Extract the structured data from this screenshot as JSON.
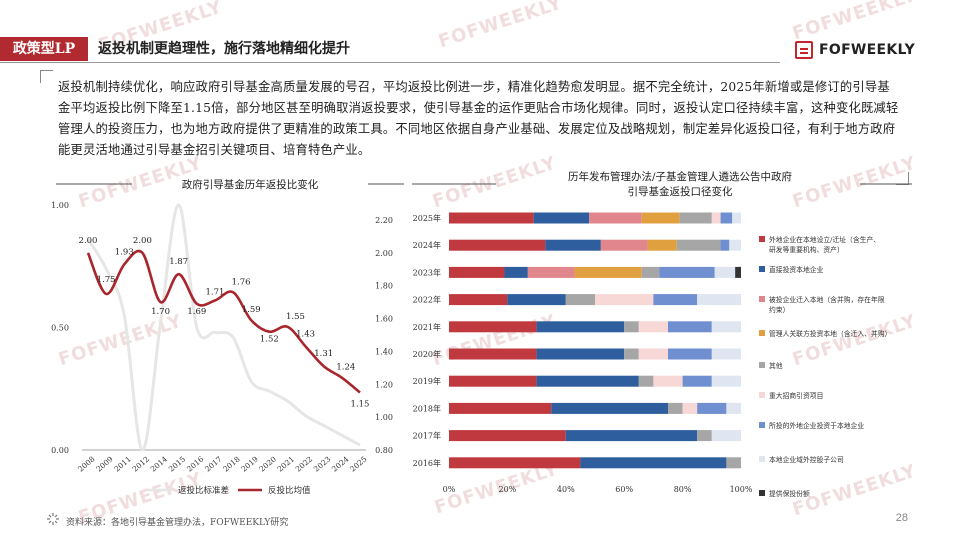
{
  "header": {
    "badge": "政策型LP",
    "title": "返投机制更趋理性，施行落地精细化提升",
    "logo": "FOFWEEKLY"
  },
  "summary": "返投机制持续优化，响应政府引导基金高质量发展的号召，平均返投比例进一步，精准化趋势愈发明显。据不完全统计，2025年新增或是修订的引导基金平均返投比例下降至1.15倍，部分地区甚至明确取消返投要求，使引导基金的运作更贴合市场化规律。同时，返投认定口径持续丰富，这种变化既减轻管理人的投资压力，也为地方政府提供了更精准的政策工具。不同地区依据自身产业基础、发展定位及战略规划，制定差异化返投口径，有利于地方政府能更灵活地通过引导基金招引关键项目、培育特色产业。",
  "watermark": "FOFWEEKLY",
  "footer": {
    "source": "资料来源：各地引导基金管理办法，FOFWEEKLY研究",
    "page": "28"
  },
  "chart_data": [
    {
      "type": "line",
      "title": "政府引导基金历年返投比变化",
      "categories": [
        "2008",
        "2009",
        "2011",
        "2012",
        "2014",
        "2015",
        "2016",
        "2017",
        "2018",
        "2019",
        "2020",
        "2021",
        "2022",
        "2023",
        "2024",
        "2025"
      ],
      "series": [
        {
          "name": "返投比标准差",
          "axis": "left",
          "color": "#e6e6e6",
          "values": [
            0.86,
            0.74,
            0.55,
            0.0,
            0.52,
            1.0,
            0.5,
            0.48,
            0.46,
            0.28,
            0.24,
            0.2,
            0.14,
            0.1,
            0.06,
            0.02
          ]
        },
        {
          "name": "反投比均值",
          "axis": "right",
          "color": "#a8262d",
          "values": [
            2.0,
            1.75,
            1.93,
            2.0,
            1.7,
            1.87,
            1.69,
            1.71,
            1.76,
            1.59,
            1.52,
            1.55,
            1.43,
            1.31,
            1.24,
            1.15
          ],
          "labels": [
            "2.00",
            "1.75",
            "1.93",
            "2.00",
            "1.70",
            "1.87",
            "1.69",
            "1.71",
            "1.76",
            "1.59",
            "1.52",
            "1.55",
            "1.43",
            "1.31",
            "1.24",
            "1.15"
          ]
        }
      ],
      "y_left": {
        "ticks": [
          "0.00",
          "0.50",
          "1.00"
        ],
        "range": [
          0,
          1
        ]
      },
      "y_right": {
        "ticks": [
          "0.80",
          "1.00",
          "1.20",
          "1.40",
          "1.60",
          "1.80",
          "2.00",
          "2.20"
        ],
        "range": [
          0.8,
          2.2
        ]
      },
      "legend": [
        "返投比标准差",
        "反投比均值"
      ],
      "legend_position": "bottom"
    },
    {
      "type": "bar",
      "orientation": "horizontal",
      "stacked": "percent",
      "title": "历年发布管理办法/子基金管理人遴选公告中政府引导基金返投口径变化",
      "title_lines": [
        "历年发布管理办法/子基金管理人遴选公告中政府",
        "引导基金返投口径变化"
      ],
      "categories": [
        "2025年",
        "2024年",
        "2023年",
        "2022年",
        "2021年",
        "2020年",
        "2019年",
        "2018年",
        "2017年",
        "2016年"
      ],
      "x_ticks": [
        "0%",
        "20%",
        "40%",
        "60%",
        "80%",
        "100%"
      ],
      "legend_position": "right",
      "series": [
        {
          "name": "外地企业在本地设立/迁址（含生产、研发等重要机构、资产）",
          "color": "#c0393f",
          "values": [
            29,
            33,
            19,
            20,
            30,
            30,
            30,
            35,
            40,
            45
          ]
        },
        {
          "name": "直接投资本地企业",
          "color": "#2e5e9e",
          "values": [
            19,
            19,
            8,
            20,
            30,
            30,
            35,
            40,
            45,
            50
          ]
        },
        {
          "name": "被投企业迁入本地（含并购，存在年限约束）",
          "color": "#e0868c",
          "values": [
            18,
            16,
            16,
            0,
            0,
            0,
            0,
            0,
            0,
            0
          ]
        },
        {
          "name": "管理人关联方投资本地（含迁入、并购）",
          "color": "#e0a040",
          "values": [
            13,
            10,
            23,
            0,
            0,
            0,
            0,
            0,
            0,
            0
          ]
        },
        {
          "name": "其他",
          "color": "#a6a6a6",
          "values": [
            11,
            15,
            6,
            10,
            5,
            5,
            5,
            5,
            5,
            5
          ]
        },
        {
          "name": "重大招商引资项目",
          "color": "#f8d7d7",
          "values": [
            3,
            0,
            0,
            20,
            10,
            10,
            10,
            5,
            0,
            0
          ]
        },
        {
          "name": "所投的外地企业投资于本地企业",
          "color": "#6f8fd0",
          "values": [
            4,
            3,
            19,
            15,
            15,
            15,
            10,
            10,
            0,
            0
          ]
        },
        {
          "name": "本地企业域外控股子公司",
          "color": "#dfe6f2",
          "values": [
            3,
            4,
            7,
            15,
            10,
            10,
            10,
            5,
            10,
            0
          ]
        },
        {
          "name": "提供保投份额",
          "color": "#333333",
          "values": [
            0,
            0,
            2,
            0,
            0,
            0,
            0,
            0,
            0,
            0
          ]
        }
      ]
    }
  ]
}
